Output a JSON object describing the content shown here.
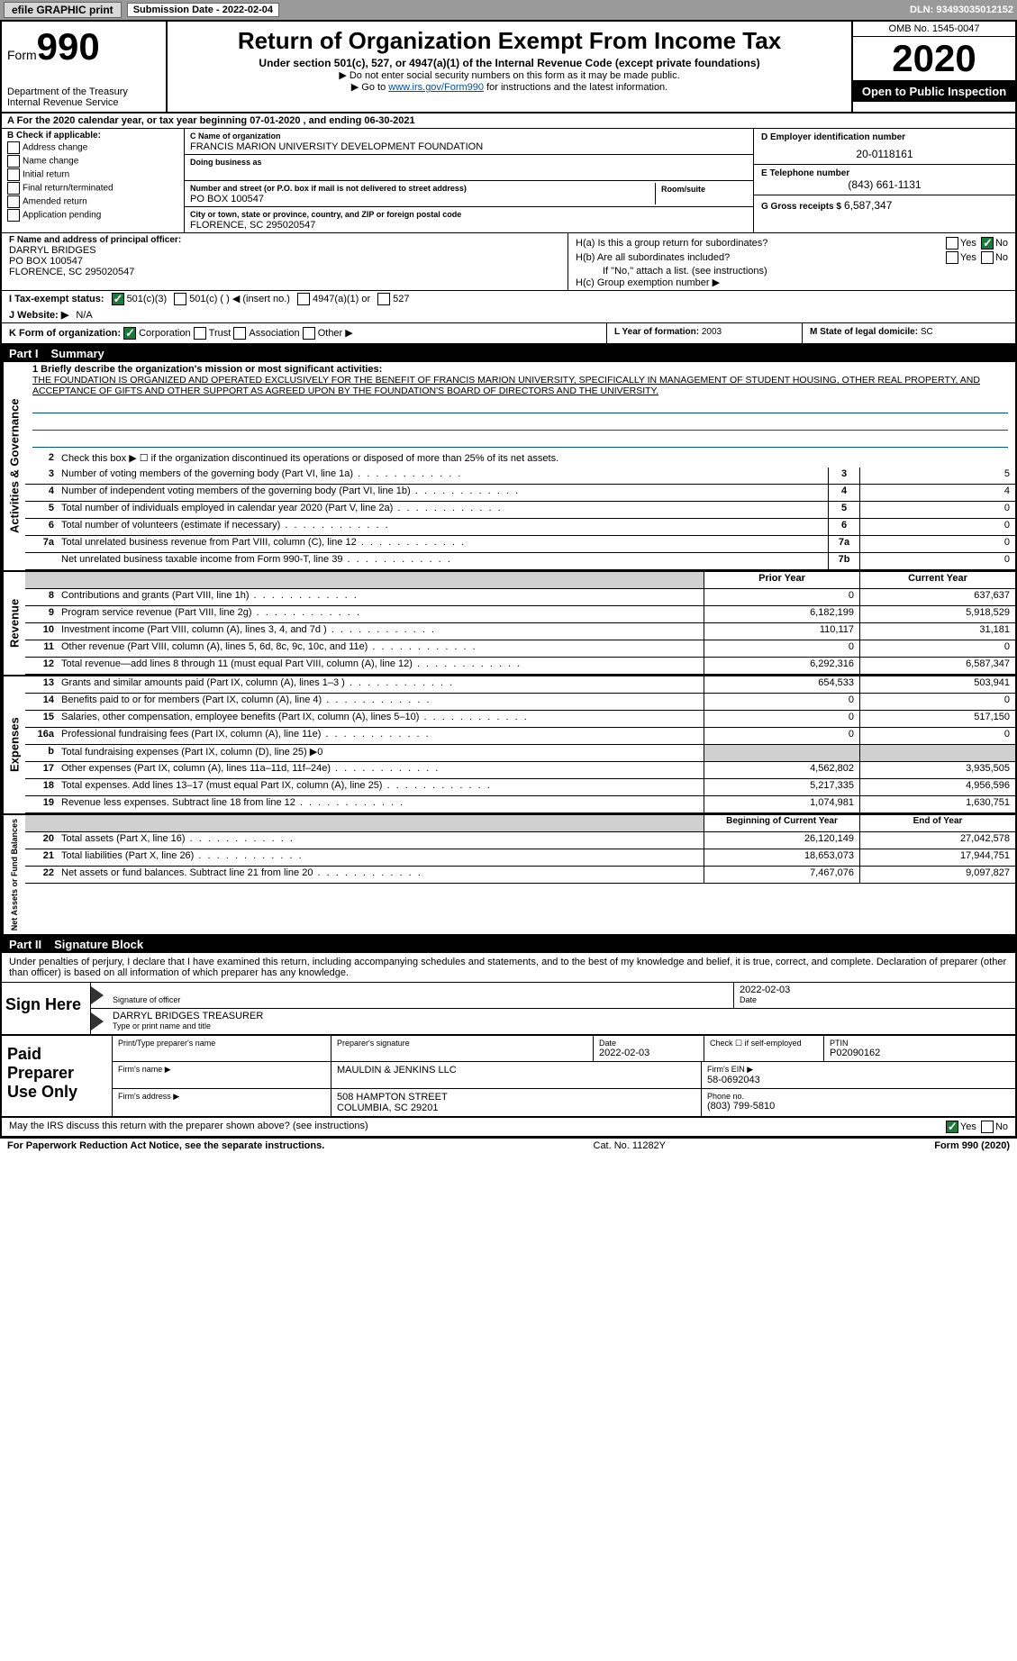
{
  "topbar": {
    "efile": "efile GRAPHIC print",
    "sub_label": "Submission Date - 2022-02-04",
    "dln": "DLN: 93493035012152"
  },
  "form": {
    "form_word": "Form",
    "num": "990",
    "dept1": "Department of the Treasury",
    "dept2": "Internal Revenue Service",
    "title": "Return of Organization Exempt From Income Tax",
    "subtitle": "Under section 501(c), 527, or 4947(a)(1) of the Internal Revenue Code (except private foundations)",
    "note1": "▶ Do not enter social security numbers on this form as it may be made public.",
    "note2_pre": "▶ Go to ",
    "note2_link": "www.irs.gov/Form990",
    "note2_post": " for instructions and the latest information.",
    "omb": "OMB No. 1545-0047",
    "year": "2020",
    "open": "Open to Public Inspection"
  },
  "period": "A   For the 2020 calendar year, or tax year beginning 07-01-2020   , and ending 06-30-2021",
  "B": {
    "hdr": "B Check if applicable:",
    "opts": [
      "Address change",
      "Name change",
      "Initial return",
      "Final return/terminated",
      "Amended return",
      "Application pending"
    ]
  },
  "C": {
    "name_lbl": "C Name of organization",
    "name": "FRANCIS MARION UNIVERSITY DEVELOPMENT FOUNDATION",
    "dba_lbl": "Doing business as",
    "dba": "",
    "addr_lbl": "Number and street (or P.O. box if mail is not delivered to street address)",
    "room_lbl": "Room/suite",
    "addr": "PO BOX 100547",
    "city_lbl": "City or town, state or province, country, and ZIP or foreign postal code",
    "city": "FLORENCE, SC  295020547"
  },
  "D": {
    "lbl": "D Employer identification number",
    "val": "20-0118161"
  },
  "E": {
    "lbl": "E Telephone number",
    "val": "(843) 661-1131"
  },
  "G": {
    "lbl": "G Gross receipts $",
    "val": "6,587,347"
  },
  "F": {
    "lbl": "F  Name and address of principal officer:",
    "l1": "DARRYL BRIDGES",
    "l2": "PO BOX 100547",
    "l3": "FLORENCE, SC  295020547"
  },
  "H": {
    "a": "H(a)  Is this a group return for subordinates?",
    "b": "H(b)  Are all subordinates included?",
    "bnote": "If \"No,\" attach a list. (see instructions)",
    "c": "H(c)  Group exemption number ▶"
  },
  "I": {
    "lbl": "I   Tax-exempt status:",
    "o1": "501(c)(3)",
    "o2": "501(c) (  ) ◀ (insert no.)",
    "o3": "4947(a)(1) or",
    "o4": "527"
  },
  "J": {
    "lbl": "J   Website: ▶",
    "val": "N/A"
  },
  "K": {
    "lbl": "K Form of organization:",
    "o1": "Corporation",
    "o2": "Trust",
    "o3": "Association",
    "o4": "Other ▶"
  },
  "L": {
    "lbl": "L Year of formation:",
    "val": "2003"
  },
  "M": {
    "lbl": "M State of legal domicile:",
    "val": "SC"
  },
  "part1": {
    "num": "Part I",
    "title": "Summary"
  },
  "mission": {
    "q": "1  Briefly describe the organization's mission or most significant activities:",
    "txt": "THE FOUNDATION IS ORGANIZED AND OPERATED EXCLUSIVELY FOR THE BENEFIT OF FRANCIS MARION UNIVERSITY, SPECIFICALLY IN MANAGEMENT OF STUDENT HOUSING, OTHER REAL PROPERTY, AND ACCEPTANCE OF GIFTS AND OTHER SUPPORT AS AGREED UPON BY THE FOUNDATION'S BOARD OF DIRECTORS AND THE UNIVERSITY."
  },
  "gov": {
    "l2": "Check this box ▶ ☐ if the organization discontinued its operations or disposed of more than 25% of its net assets.",
    "rows": [
      {
        "n": "3",
        "d": "Number of voting members of the governing body (Part VI, line 1a)",
        "v": "5"
      },
      {
        "n": "4",
        "d": "Number of independent voting members of the governing body (Part VI, line 1b)",
        "v": "4"
      },
      {
        "n": "5",
        "d": "Total number of individuals employed in calendar year 2020 (Part V, line 2a)",
        "v": "0"
      },
      {
        "n": "6",
        "d": "Total number of volunteers (estimate if necessary)",
        "v": "0"
      },
      {
        "n": "7a",
        "d": "Total unrelated business revenue from Part VIII, column (C), line 12",
        "v": "0"
      },
      {
        "n": "",
        "d": "Net unrelated business taxable income from Form 990-T, line 39",
        "b": "7b",
        "v": "0"
      }
    ]
  },
  "colhdr": {
    "prior": "Prior Year",
    "curr": "Current Year"
  },
  "rev": [
    {
      "n": "8",
      "d": "Contributions and grants (Part VIII, line 1h)",
      "p": "0",
      "c": "637,637"
    },
    {
      "n": "9",
      "d": "Program service revenue (Part VIII, line 2g)",
      "p": "6,182,199",
      "c": "5,918,529"
    },
    {
      "n": "10",
      "d": "Investment income (Part VIII, column (A), lines 3, 4, and 7d )",
      "p": "110,117",
      "c": "31,181"
    },
    {
      "n": "11",
      "d": "Other revenue (Part VIII, column (A), lines 5, 6d, 8c, 9c, 10c, and 11e)",
      "p": "0",
      "c": "0"
    },
    {
      "n": "12",
      "d": "Total revenue—add lines 8 through 11 (must equal Part VIII, column (A), line 12)",
      "p": "6,292,316",
      "c": "6,587,347"
    }
  ],
  "exp": [
    {
      "n": "13",
      "d": "Grants and similar amounts paid (Part IX, column (A), lines 1–3 )",
      "p": "654,533",
      "c": "503,941"
    },
    {
      "n": "14",
      "d": "Benefits paid to or for members (Part IX, column (A), line 4)",
      "p": "0",
      "c": "0"
    },
    {
      "n": "15",
      "d": "Salaries, other compensation, employee benefits (Part IX, column (A), lines 5–10)",
      "p": "0",
      "c": "517,150"
    },
    {
      "n": "16a",
      "d": "Professional fundraising fees (Part IX, column (A), line 11e)",
      "p": "0",
      "c": "0"
    },
    {
      "n": "b",
      "d": "Total fundraising expenses (Part IX, column (D), line 25) ▶0",
      "shade": true
    },
    {
      "n": "17",
      "d": "Other expenses (Part IX, column (A), lines 11a–11d, 11f–24e)",
      "p": "4,562,802",
      "c": "3,935,505"
    },
    {
      "n": "18",
      "d": "Total expenses. Add lines 13–17 (must equal Part IX, column (A), line 25)",
      "p": "5,217,335",
      "c": "4,956,596"
    },
    {
      "n": "19",
      "d": "Revenue less expenses. Subtract line 18 from line 12",
      "p": "1,074,981",
      "c": "1,630,751"
    }
  ],
  "nethdr": {
    "beg": "Beginning of Current Year",
    "end": "End of Year"
  },
  "net": [
    {
      "n": "20",
      "d": "Total assets (Part X, line 16)",
      "p": "26,120,149",
      "c": "27,042,578"
    },
    {
      "n": "21",
      "d": "Total liabilities (Part X, line 26)",
      "p": "18,653,073",
      "c": "17,944,751"
    },
    {
      "n": "22",
      "d": "Net assets or fund balances. Subtract line 21 from line 20",
      "p": "7,467,076",
      "c": "9,097,827"
    }
  ],
  "sidelabels": {
    "gov": "Activities & Governance",
    "rev": "Revenue",
    "exp": "Expenses",
    "net": "Net Assets or Fund Balances"
  },
  "part2": {
    "num": "Part II",
    "title": "Signature Block"
  },
  "sigtext": "Under penalties of perjury, I declare that I have examined this return, including accompanying schedules and statements, and to the best of my knowledge and belief, it is true, correct, and complete. Declaration of preparer (other than officer) is based on all information of which preparer has any knowledge.",
  "sign": {
    "here": "Sign Here",
    "sig_lbl": "Signature of officer",
    "date_lbl": "Date",
    "date": "2022-02-03",
    "name": "DARRYL BRIDGES  TREASURER",
    "name_lbl": "Type or print name and title"
  },
  "paid": {
    "here": "Paid Preparer Use Only",
    "h1": "Print/Type preparer's name",
    "h2": "Preparer's signature",
    "h3": "Date",
    "h3v": "2022-02-03",
    "h4": "Check ☐ if self-employed",
    "h5": "PTIN",
    "h5v": "P02090162",
    "firm_lbl": "Firm's name    ▶",
    "firm": "MAULDIN & JENKINS LLC",
    "ein_lbl": "Firm's EIN ▶",
    "ein": "58-0692043",
    "addr_lbl": "Firm's address ▶",
    "addr1": "508 HAMPTON STREET",
    "addr2": "COLUMBIA, SC  29201",
    "phone_lbl": "Phone no.",
    "phone": "(803) 799-5810"
  },
  "may": "May the IRS discuss this return with the preparer shown above? (see instructions)",
  "footer": {
    "l": "For Paperwork Reduction Act Notice, see the separate instructions.",
    "m": "Cat. No. 11282Y",
    "r": "Form 990 (2020)"
  }
}
